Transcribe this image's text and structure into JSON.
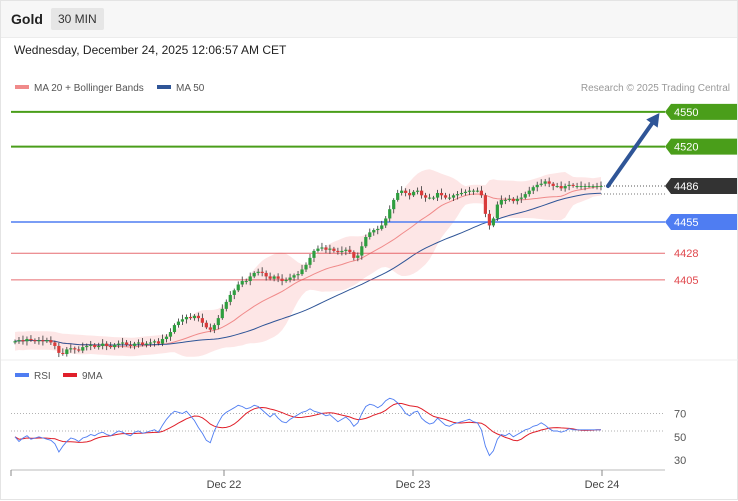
{
  "header": {
    "instrument": "Gold",
    "timeframe": "30 MIN",
    "datetime": "Wednesday, December 24, 2025 12:06:57 AM CET"
  },
  "legend": {
    "ma20": "MA 20 + Bollinger Bands",
    "ma50": "MA 50",
    "copyright": "Research © 2025 Trading Central"
  },
  "rsi_legend": {
    "rsi": "RSI",
    "ma9": "9MA"
  },
  "colors": {
    "up": "#2e9e3f",
    "down": "#d93a3a",
    "resistance": "#4a9e1a",
    "pivot": "#4f7df2",
    "support": "#e0474c",
    "ma50": "#2f5597",
    "ma20": "#f08a8a",
    "band": "#fde0e0",
    "current": "#333333",
    "arrow": "#2f5597",
    "rsi": "#4f7df2",
    "rsi_ma": "#e0202a"
  },
  "chart_data": [
    {
      "type": "candlestick",
      "ylim": [
        4335,
        4568
      ],
      "x_ticks": [
        "Dec 22",
        "Dec 23",
        "Dec 24"
      ],
      "candles_count": 148,
      "closes": [
        4352,
        4353,
        4352,
        4354,
        4353,
        4352,
        4353,
        4352,
        4353,
        4351,
        4348,
        4342,
        4341,
        4345,
        4346,
        4345,
        4344,
        4347,
        4348,
        4349,
        4347,
        4348,
        4350,
        4348,
        4347,
        4349,
        4350,
        4351,
        4349,
        4348,
        4350,
        4351,
        4349,
        4350,
        4351,
        4352,
        4350,
        4354,
        4356,
        4360,
        4366,
        4369,
        4371,
        4373,
        4372,
        4374,
        4372,
        4368,
        4364,
        4362,
        4366,
        4372,
        4380,
        4386,
        4392,
        4396,
        4401,
        4404,
        4404,
        4408,
        4411,
        4412,
        4411,
        4408,
        4406,
        4408,
        4406,
        4404,
        4405,
        4407,
        4409,
        4410,
        4414,
        4418,
        4424,
        4430,
        4432,
        4433,
        4431,
        4432,
        4430,
        4429,
        4430,
        4431,
        4429,
        4424,
        4426,
        4434,
        4442,
        4446,
        4448,
        4449,
        4452,
        4458,
        4466,
        4474,
        4480,
        4482,
        4480,
        4478,
        4481,
        4482,
        4478,
        4476,
        4476,
        4476,
        4480,
        4478,
        4476,
        4476,
        4478,
        4479,
        4480,
        4481,
        4482,
        4482,
        4482,
        4478,
        4462,
        4452,
        4458,
        4470,
        4474,
        4474,
        4475,
        4473,
        4475,
        4476,
        4479,
        4482,
        4485,
        4487,
        4488,
        4490,
        4488,
        4486,
        4486,
        4484,
        4486,
        4487,
        4486,
        4486,
        4486,
        4486,
        4486,
        4486,
        4486,
        4486
      ],
      "title": "Gold 30 MIN",
      "levels": [
        {
          "value": 4550,
          "label": "4550",
          "kind": "resistance"
        },
        {
          "value": 4520,
          "label": "4520",
          "kind": "resistance"
        },
        {
          "value": 4486,
          "label": "4486",
          "kind": "current"
        },
        {
          "value": 4455,
          "label": "4455",
          "kind": "pivot"
        },
        {
          "value": 4428,
          "label": "4428",
          "kind": "support"
        },
        {
          "value": 4405,
          "label": "4405",
          "kind": "support"
        }
      ],
      "series": [
        {
          "name": "MA 20 + Bollinger Bands"
        },
        {
          "name": "MA 50"
        }
      ],
      "target_arrow": {
        "from": 4486,
        "to": 4550
      }
    },
    {
      "type": "line",
      "ylim": [
        25,
        85
      ],
      "y_ticks": [
        "70",
        "50",
        "30"
      ],
      "series": [
        {
          "name": "RSI",
          "values": [
            50,
            46,
            49,
            51,
            48,
            49,
            50,
            49,
            48,
            47,
            44,
            37,
            42,
            46,
            49,
            48,
            46,
            49,
            50,
            52,
            51,
            53,
            54,
            52,
            51,
            53,
            55,
            54,
            52,
            51,
            54,
            55,
            53,
            54,
            55,
            56,
            54,
            60,
            65,
            69,
            72,
            71,
            70,
            72,
            68,
            64,
            58,
            53,
            47,
            45,
            55,
            62,
            68,
            71,
            73,
            75,
            77,
            76,
            74,
            75,
            77,
            76,
            73,
            70,
            67,
            70,
            66,
            63,
            62,
            65,
            67,
            69,
            71,
            72,
            74,
            72,
            71,
            70,
            68,
            69,
            66,
            63,
            65,
            67,
            64,
            59,
            62,
            70,
            76,
            78,
            77,
            75,
            77,
            81,
            83,
            82,
            79,
            75,
            70,
            68,
            71,
            72,
            66,
            63,
            61,
            62,
            66,
            63,
            60,
            59,
            61,
            62,
            63,
            64,
            65,
            63,
            62,
            56,
            42,
            34,
            38,
            48,
            52,
            51,
            53,
            50,
            52,
            54,
            56,
            57,
            59,
            60,
            62,
            60,
            57,
            55,
            55,
            54,
            55,
            57,
            56,
            56,
            56,
            56,
            56,
            56,
            56,
            56
          ]
        },
        {
          "name": "9MA"
        }
      ],
      "ref_lines": [
        70,
        55
      ]
    }
  ]
}
